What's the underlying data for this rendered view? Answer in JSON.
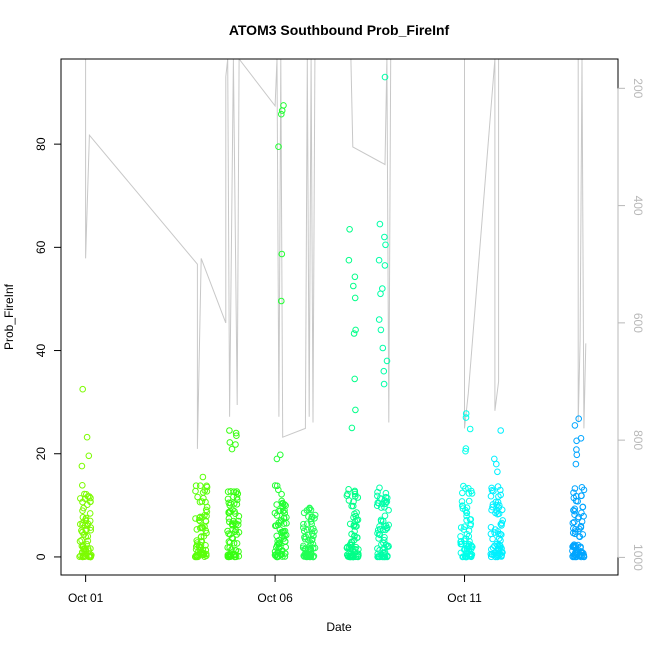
{
  "chart_data": {
    "type": "scatter",
    "title": "ATOM3 Southbound Prob_FireInf",
    "xlabel": "Date",
    "ylabel": "Prob_FireInf",
    "x_ticks": [
      "Oct 01",
      "Oct 06",
      "Oct 11"
    ],
    "x_tick_days": [
      1,
      6,
      11
    ],
    "xlim_days": [
      0.35,
      15.05
    ],
    "y_ticks": [
      0,
      20,
      40,
      60,
      80
    ],
    "ylim": [
      -3.5,
      96.5
    ],
    "y2_ticks": [
      200,
      400,
      600,
      800,
      1000
    ],
    "y2_lim_reversed": [
      1030,
      150
    ],
    "grid": false,
    "clusters": [
      {
        "day": 1.0,
        "max": 32.5,
        "high_points": [
          32.5,
          23.2,
          19.6,
          17.6
        ],
        "color": "#7CFC00"
      },
      {
        "day": 4.05,
        "max": 15.5,
        "high_points": [
          15.5,
          12.5
        ],
        "color": "#5BFF0A"
      },
      {
        "day": 4.9,
        "max": 24.5,
        "high_points": [
          24.5,
          24.0,
          23.5,
          22.2,
          21.8,
          20.9
        ],
        "color": "#38FF12"
      },
      {
        "day": 6.15,
        "max": 87.5,
        "high_points": [
          87.5,
          86.5,
          85.8,
          79.5,
          58.7,
          49.6,
          19.8,
          19.0
        ],
        "color": "#22FF33"
      },
      {
        "day": 6.9,
        "max": 9.5,
        "high_points": [
          9.5,
          7.8
        ],
        "color": "#22FF55"
      },
      {
        "day": 8.05,
        "max": 63.5,
        "high_points": [
          63.5,
          57.5,
          54.3,
          52.5,
          50.2,
          44.0,
          43.3,
          34.5,
          28.5,
          25.0
        ],
        "color": "#00FF88"
      },
      {
        "day": 8.85,
        "max": 93.0,
        "high_points": [
          93.0,
          64.5,
          62.0,
          60.5,
          57.5,
          56.5,
          52.0,
          51.0,
          46.0,
          44.0,
          40.5,
          38.0,
          36.0,
          33.5
        ],
        "color": "#00FFA8"
      },
      {
        "day": 11.05,
        "max": 27.8,
        "high_points": [
          27.8,
          27.0,
          24.8,
          21.0,
          20.5
        ],
        "color": "#00FFEA"
      },
      {
        "day": 11.85,
        "max": 24.5,
        "high_points": [
          24.5,
          19.0,
          18.0,
          16.5
        ],
        "color": "#00F0FF"
      },
      {
        "day": 14.0,
        "max": 26.8,
        "high_points": [
          26.8,
          25.5,
          23.0,
          22.5,
          20.8,
          19.8,
          18.0
        ],
        "color": "#00A5FF"
      }
    ],
    "line_series": {
      "name": "",
      "color": "#c8c8c8",
      "points": [
        [
          1.0,
          150
        ],
        [
          1.0,
          490
        ],
        [
          1.1,
          280
        ],
        [
          3.95,
          500
        ],
        [
          3.95,
          815
        ],
        [
          4.05,
          490
        ],
        [
          4.7,
          600
        ],
        [
          4.7,
          180
        ],
        [
          4.75,
          150
        ],
        [
          4.8,
          760
        ],
        [
          4.9,
          150
        ],
        [
          5.0,
          740
        ],
        [
          5.05,
          150
        ],
        [
          6.0,
          230
        ],
        [
          6.05,
          150
        ],
        [
          6.1,
          760
        ],
        [
          6.15,
          150
        ],
        [
          6.2,
          795
        ],
        [
          6.8,
          780
        ],
        [
          6.85,
          150
        ],
        [
          6.9,
          760
        ],
        [
          6.95,
          150
        ],
        [
          7.0,
          770
        ],
        [
          7.05,
          150
        ],
        [
          8.0,
          150
        ],
        [
          8.05,
          300
        ],
        [
          8.9,
          330
        ],
        [
          8.95,
          150
        ],
        [
          9.0,
          770
        ],
        [
          9.05,
          150
        ],
        [
          11.0,
          150
        ],
        [
          11.0,
          780
        ],
        [
          11.1,
          720
        ],
        [
          11.8,
          150
        ],
        [
          11.8,
          750
        ],
        [
          11.9,
          700
        ],
        [
          11.9,
          150
        ],
        [
          14.0,
          150
        ],
        [
          14.0,
          770
        ],
        [
          14.05,
          630
        ],
        [
          14.1,
          150
        ],
        [
          14.15,
          780
        ],
        [
          14.2,
          635
        ]
      ]
    }
  }
}
